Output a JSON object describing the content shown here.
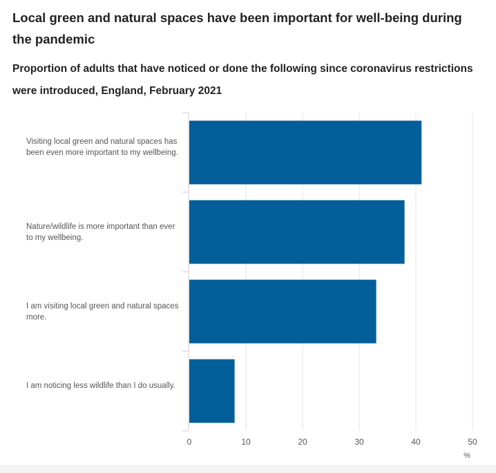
{
  "header": {
    "title": "Local green and natural spaces have been important for well-being during the pandemic",
    "subtitle": "Proportion of adults that have noticed or done the following since coronavirus restrictions were introduced, England, February 2021"
  },
  "colors": {
    "bar": "#045e9a",
    "grid": "#e6e6e6",
    "axis": "#cccccc"
  },
  "chart_data": {
    "type": "bar",
    "orientation": "horizontal",
    "categories": [
      "Visiting local green and natural spaces has been even more important to my wellbeing.",
      "Nature/wildlife is more important than ever to my wellbeing.",
      "I am visiting local green and natural spaces more.",
      "I am noticing less wildlife than I do usually."
    ],
    "values": [
      41,
      38,
      33,
      8
    ],
    "xlim": [
      0,
      50
    ],
    "xticks": [
      "0",
      "10",
      "20",
      "30",
      "40",
      "50"
    ],
    "xlabel": "%",
    "ylabel": "",
    "grid": true,
    "title": "Local green and natural spaces have been important for well-being during the pandemic"
  }
}
